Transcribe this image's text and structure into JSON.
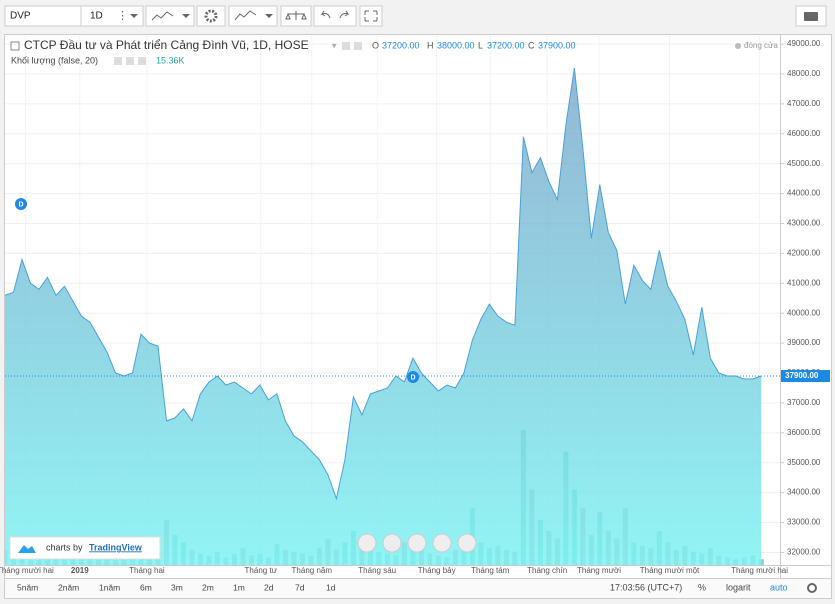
{
  "toolbar": {
    "symbol": "DVP",
    "interval": "1D"
  },
  "legend": {
    "o_label": "O",
    "open": "37200.00",
    "h_label": "H",
    "high": "38000.00",
    "l_label": "L",
    "low": "37200.00",
    "c_label": "C",
    "close": "37900.00",
    "price_source": "đóng cửa",
    "volume_readout": "15.36K"
  },
  "events": [
    "D",
    "D"
  ],
  "branding": {
    "prefix": "charts by",
    "brand": "TradingView"
  },
  "bottom_bar": {
    "ranges": [
      "5năm",
      "2năm",
      "1năm",
      "6m",
      "3m",
      "2m",
      "1m",
      "2d",
      "7d",
      "1d"
    ],
    "clock": "17:03:56 (UTC+7)",
    "percent": "%",
    "log": "logarit",
    "auto": "auto"
  },
  "chart_data": {
    "type": "area",
    "series": [
      {
        "name": "CTCP Đầu tư và Phát triển Cảng Đình Vũ, 1D, HOSE",
        "color": "#4a9fd8",
        "values": [
          40600,
          40700,
          41800,
          41000,
          40800,
          41200,
          40600,
          40900,
          40400,
          39900,
          39700,
          39200,
          38700,
          38000,
          37900,
          38000,
          39300,
          39000,
          38900,
          36400,
          36500,
          36800,
          36400,
          37300,
          37700,
          37900,
          37600,
          37700,
          37500,
          37300,
          37600,
          37100,
          37300,
          36400,
          35900,
          35700,
          35400,
          35100,
          34600,
          33800,
          35100,
          37200,
          36600,
          37300,
          37400,
          37500,
          37900,
          37700,
          38500,
          38000,
          37700,
          37400,
          37600,
          37500,
          38000,
          39100,
          39800,
          40300,
          39900,
          39700,
          39600,
          45900,
          44700,
          45200,
          44400,
          43800,
          46300,
          48200,
          45500,
          42500,
          44300,
          42700,
          42100,
          40300,
          41600,
          41100,
          40800,
          42100,
          40900,
          40400,
          39800,
          38600,
          40200,
          38500,
          38000,
          37900,
          37900,
          37800,
          37800,
          37900
        ]
      },
      {
        "name": "Khối lượng (false, 20)",
        "axis": "y2",
        "up_color": "rgba(38,166,154,0.55)",
        "down_color": "rgba(110,110,110,0.5)",
        "values": [
          40,
          30,
          60,
          25,
          35,
          20,
          45,
          30,
          25,
          20,
          30,
          50,
          35,
          20,
          25,
          40,
          60,
          30,
          20,
          120,
          80,
          60,
          40,
          30,
          25,
          35,
          20,
          30,
          45,
          25,
          30,
          20,
          55,
          40,
          35,
          30,
          25,
          45,
          70,
          40,
          60,
          90,
          50,
          40,
          35,
          30,
          25,
          60,
          40,
          50,
          30,
          25,
          20,
          40,
          55,
          150,
          60,
          45,
          50,
          40,
          35,
          357,
          200,
          120,
          90,
          70,
          300,
          200,
          150,
          80,
          140,
          90,
          70,
          150,
          60,
          50,
          45,
          90,
          60,
          40,
          50,
          35,
          30,
          45,
          25,
          20,
          15,
          20,
          25,
          15.36
        ]
      }
    ],
    "xlim": [
      0,
      91.2
    ],
    "xticks": [
      {
        "value": 2.4,
        "label": "Tháng mười hai"
      },
      {
        "value": 8.8,
        "label": "2019"
      },
      {
        "value": 16.7,
        "label": "Tháng hai"
      },
      {
        "value": 30.1,
        "label": "Tháng tư"
      },
      {
        "value": 36.1,
        "label": "Tháng năm"
      },
      {
        "value": 43.8,
        "label": "Tháng sáu"
      },
      {
        "value": 50.8,
        "label": "Tháng bảy"
      },
      {
        "value": 57.1,
        "label": "Tháng tám"
      },
      {
        "value": 63.8,
        "label": "Tháng chín"
      },
      {
        "value": 69.9,
        "label": "Tháng mười"
      },
      {
        "value": 78.2,
        "label": "Tháng mười một"
      },
      {
        "value": 88.8,
        "label": "Tháng mười hai"
      }
    ],
    "ylim": [
      31580,
      49270
    ],
    "yticks": [
      {
        "value": 32000,
        "label": "32000.00"
      },
      {
        "value": 33000,
        "label": "33000.00"
      },
      {
        "value": 34000,
        "label": "34000.00"
      },
      {
        "value": 35000,
        "label": "35000.00"
      },
      {
        "value": 36000,
        "label": "36000.00"
      },
      {
        "value": 37000,
        "label": "37000.00"
      },
      {
        "value": 38000,
        "label": "38000.00"
      },
      {
        "value": 39000,
        "label": "39000.00"
      },
      {
        "value": 40000,
        "label": "40000.00"
      },
      {
        "value": 41000,
        "label": "41000.00"
      },
      {
        "value": 42000,
        "label": "42000.00"
      },
      {
        "value": 43000,
        "label": "43000.00"
      },
      {
        "value": 44000,
        "label": "44000.00"
      },
      {
        "value": 45000,
        "label": "45000.00"
      },
      {
        "value": 46000,
        "label": "46000.00"
      },
      {
        "value": 47000,
        "label": "47000.00"
      },
      {
        "value": 48000,
        "label": "48000.00"
      },
      {
        "value": 49000,
        "label": "49000.00"
      }
    ],
    "y2lim": [
      0,
      1400
    ],
    "price_line": {
      "value": 37900,
      "label": "37900.00"
    },
    "grid": true
  }
}
